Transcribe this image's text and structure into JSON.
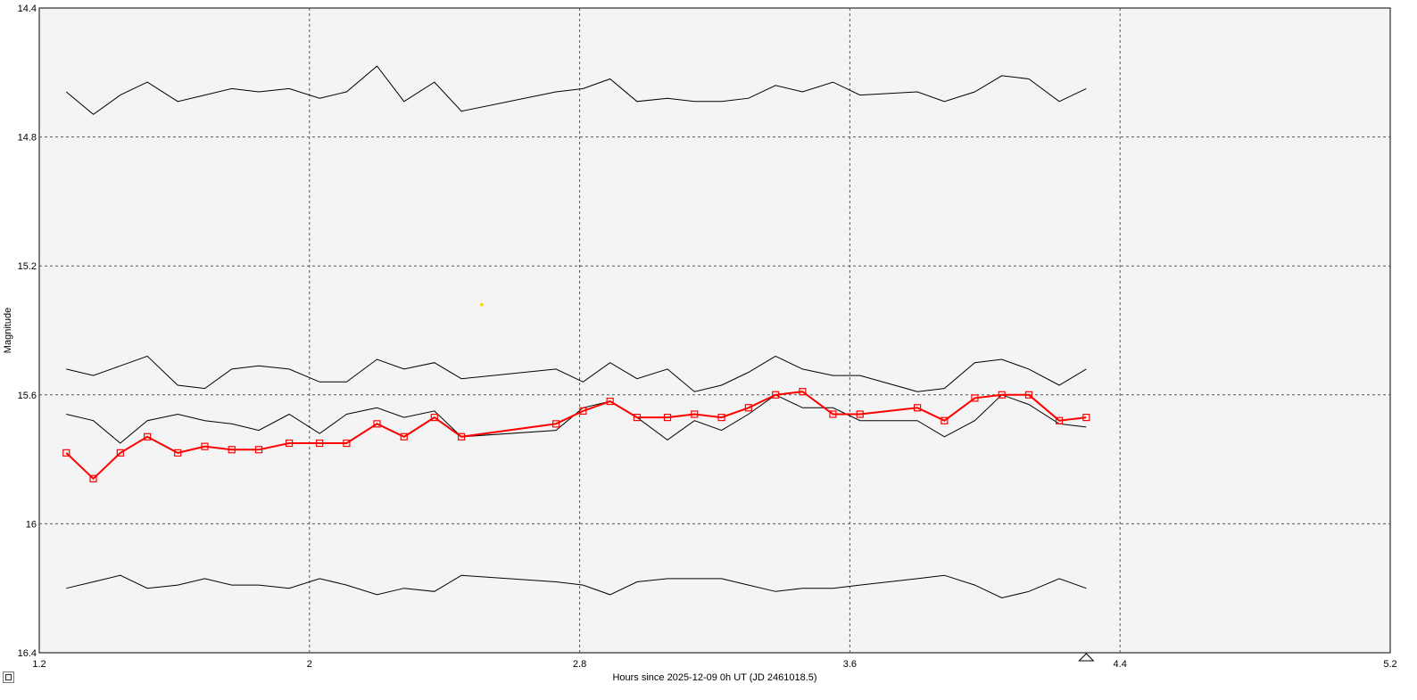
{
  "chart_data": {
    "type": "line",
    "xlabel": "Hours since 2025-12-09 0h UT (JD 2461018.5)",
    "ylabel": "Magnitude",
    "xlim": [
      1.2,
      5.2
    ],
    "ylim": [
      14.4,
      16.4
    ],
    "y_inverted": true,
    "x_ticks": [
      "1.2",
      "2",
      "2.8",
      "3.6",
      "4.4",
      "5.2"
    ],
    "y_ticks": [
      "14.4",
      "14.8",
      "15.2",
      "15.6",
      "16",
      "16.4"
    ],
    "grid": true,
    "background": "#f4f4f4",
    "x": [
      1.28,
      1.36,
      1.44,
      1.52,
      1.61,
      1.69,
      1.77,
      1.85,
      1.94,
      2.03,
      2.11,
      2.2,
      2.28,
      2.37,
      2.45,
      2.73,
      2.81,
      2.89,
      2.97,
      3.06,
      3.14,
      3.22,
      3.3,
      3.38,
      3.46,
      3.55,
      3.63,
      3.8,
      3.88,
      3.97,
      4.05,
      4.13,
      4.22,
      4.3
    ],
    "series": [
      {
        "color": "#000000",
        "marker": "none",
        "values": [
          14.66,
          14.73,
          14.67,
          14.63,
          14.69,
          14.67,
          14.65,
          14.66,
          14.65,
          14.68,
          14.66,
          14.58,
          14.69,
          14.63,
          14.72,
          14.66,
          14.65,
          14.62,
          14.69,
          14.68,
          14.69,
          14.69,
          14.68,
          14.64,
          14.66,
          14.63,
          14.67,
          14.66,
          14.69,
          14.66,
          14.61,
          14.62,
          14.69,
          14.65
        ]
      },
      {
        "color": "#000000",
        "marker": "none",
        "values": [
          15.52,
          15.54,
          15.51,
          15.48,
          15.57,
          15.58,
          15.52,
          15.51,
          15.52,
          15.56,
          15.56,
          15.49,
          15.52,
          15.5,
          15.55,
          15.52,
          15.56,
          15.5,
          15.55,
          15.52,
          15.59,
          15.57,
          15.53,
          15.48,
          15.52,
          15.54,
          15.54,
          15.59,
          15.58,
          15.5,
          15.49,
          15.52,
          15.57,
          15.52
        ]
      },
      {
        "color": "#000000",
        "marker": "none",
        "values": [
          15.66,
          15.68,
          15.75,
          15.68,
          15.66,
          15.68,
          15.69,
          15.71,
          15.66,
          15.72,
          15.66,
          15.64,
          15.67,
          15.65,
          15.73,
          15.71,
          15.64,
          15.62,
          15.67,
          15.74,
          15.68,
          15.71,
          15.66,
          15.6,
          15.64,
          15.64,
          15.68,
          15.68,
          15.73,
          15.68,
          15.6,
          15.63,
          15.69,
          15.7
        ]
      },
      {
        "color": "#ff0000",
        "marker": "square",
        "values": [
          15.78,
          15.86,
          15.78,
          15.73,
          15.78,
          15.76,
          15.77,
          15.77,
          15.75,
          15.75,
          15.75,
          15.69,
          15.73,
          15.67,
          15.73,
          15.69,
          15.65,
          15.62,
          15.67,
          15.67,
          15.66,
          15.67,
          15.64,
          15.6,
          15.59,
          15.66,
          15.66,
          15.64,
          15.68,
          15.61,
          15.6,
          15.6,
          15.68,
          15.67
        ]
      },
      {
        "color": "#000000",
        "marker": "none",
        "values": [
          16.2,
          16.18,
          16.16,
          16.2,
          16.19,
          16.17,
          16.19,
          16.19,
          16.2,
          16.17,
          16.19,
          16.22,
          16.2,
          16.21,
          16.16,
          16.18,
          16.19,
          16.22,
          16.18,
          16.17,
          16.17,
          16.17,
          16.19,
          16.21,
          16.2,
          16.2,
          16.19,
          16.17,
          16.16,
          16.19,
          16.23,
          16.21,
          16.17,
          16.2
        ]
      }
    ],
    "annotations": [
      {
        "shape": "yellow-dot",
        "x": 2.51,
        "y": 15.32
      },
      {
        "shape": "triangle-marker",
        "x": 4.3,
        "y": 16.4
      }
    ]
  },
  "ui": {
    "corner_button_icon": "square-icon"
  }
}
